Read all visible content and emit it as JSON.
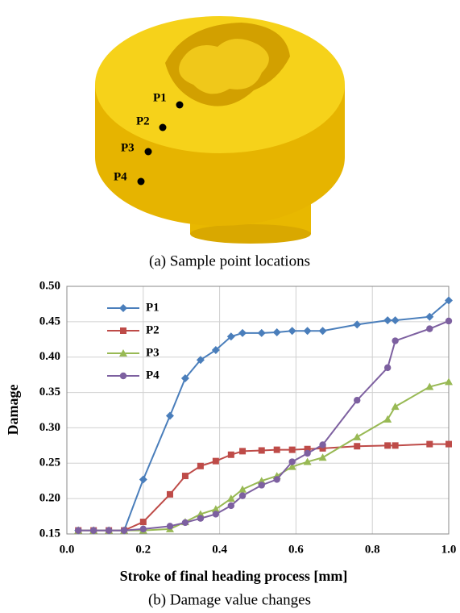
{
  "illustration": {
    "points": [
      "P1",
      "P2",
      "P3",
      "P4"
    ],
    "caption": "(a) Sample point locations"
  },
  "chart_data": {
    "type": "line",
    "x": [
      0.03,
      0.07,
      0.11,
      0.15,
      0.2,
      0.27,
      0.31,
      0.35,
      0.39,
      0.43,
      0.46,
      0.51,
      0.55,
      0.59,
      0.63,
      0.67,
      0.76,
      0.84,
      0.86,
      0.95,
      1.0
    ],
    "series": [
      {
        "name": "P1",
        "color": "#4a7ebb",
        "marker": "diamond",
        "values": [
          0.155,
          0.155,
          0.155,
          0.155,
          0.227,
          0.317,
          0.37,
          0.396,
          0.41,
          0.429,
          0.434,
          0.434,
          0.435,
          0.437,
          0.437,
          0.437,
          0.446,
          0.452,
          0.452,
          0.457,
          0.48
        ]
      },
      {
        "name": "P2",
        "color": "#be4b48",
        "marker": "square",
        "values": [
          0.155,
          0.155,
          0.155,
          0.155,
          0.167,
          0.206,
          0.232,
          0.246,
          0.253,
          0.262,
          0.267,
          0.268,
          0.269,
          0.269,
          0.27,
          0.271,
          0.274,
          0.275,
          0.275,
          0.277,
          0.277
        ]
      },
      {
        "name": "P3",
        "color": "#98b954",
        "marker": "triangle",
        "values": [
          0.155,
          0.155,
          0.155,
          0.155,
          0.155,
          0.157,
          0.167,
          0.178,
          0.185,
          0.2,
          0.213,
          0.225,
          0.232,
          0.245,
          0.252,
          0.258,
          0.287,
          0.312,
          0.33,
          0.358,
          0.365
        ]
      },
      {
        "name": "P4",
        "color": "#7d60a0",
        "marker": "circle",
        "values": [
          0.155,
          0.155,
          0.155,
          0.155,
          0.157,
          0.161,
          0.166,
          0.172,
          0.178,
          0.19,
          0.204,
          0.219,
          0.227,
          0.252,
          0.264,
          0.276,
          0.339,
          0.385,
          0.423,
          0.44,
          0.451
        ]
      }
    ],
    "xlim": [
      0,
      1
    ],
    "ylim": [
      0.15,
      0.5
    ],
    "xticks": [
      {
        "value": 0,
        "label": "0.0"
      },
      0.2,
      0.4,
      0.6,
      0.8,
      {
        "value": 1,
        "label": "1.0"
      }
    ],
    "yticks": [
      0.15,
      {
        "value": 0.2,
        "label": "0.20"
      },
      0.25,
      {
        "value": 0.3,
        "label": "0.30"
      },
      0.35,
      {
        "value": 0.4,
        "label": "0.40"
      },
      0.45,
      {
        "value": 0.5,
        "label": "0.50"
      }
    ],
    "grid": true,
    "legend": "upper-left",
    "xlabel": "Stroke of final heading process [mm]",
    "ylabel": "Damage",
    "caption": "(b) Damage value changes"
  }
}
